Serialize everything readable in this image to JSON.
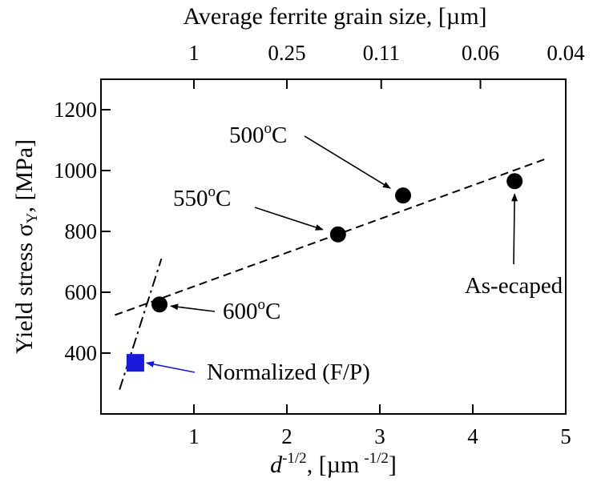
{
  "chart_data": {
    "type": "scatter",
    "xlabel": "d",
    "xlabel_sup": "-1/2",
    "xlabel_units": ", [µm",
    "xlabel_units_sup": "-1/2",
    "xlabel_close": "]",
    "ylabel": "Yield stress σ",
    "ylabel_sub": "Y",
    "ylabel_units": ", [MPa]",
    "top_xlabel": "Average ferrite grain size, [µm]",
    "xlim": [
      0,
      5
    ],
    "ylim": [
      200,
      1300
    ],
    "x_ticks": [
      1,
      2,
      3,
      4,
      5
    ],
    "y_ticks": [
      400,
      600,
      800,
      1000,
      1200
    ],
    "top_x_ticks": [
      {
        "label": "1",
        "x": 1.0
      },
      {
        "label": "0.25",
        "x": 2.0
      },
      {
        "label": "0.11",
        "x": 3.015
      },
      {
        "label": "0.06",
        "x": 4.082
      },
      {
        "label": "0.04",
        "x": 5.0
      }
    ],
    "grid": false,
    "series": [
      {
        "points": [
          {
            "x": 0.63,
            "y": 560,
            "label": "600",
            "label_sup": "o",
            "label_suffix": "C"
          },
          {
            "x": 2.55,
            "y": 790,
            "label": "550",
            "label_sup": "o",
            "label_suffix": "C"
          },
          {
            "x": 3.25,
            "y": 918,
            "label": "500",
            "label_sup": "o",
            "label_suffix": "C"
          },
          {
            "x": 4.45,
            "y": 965,
            "label": "As-ecaped",
            "label_sup": "",
            "label_suffix": ""
          }
        ],
        "marker": "circle",
        "color": "#000000"
      },
      {
        "points": [
          {
            "x": 0.37,
            "y": 368,
            "label": "Normalized (F/P)",
            "label_sup": "",
            "label_suffix": ""
          }
        ],
        "marker": "square",
        "color": "#1a1adc"
      }
    ],
    "fit_lines": [
      {
        "style": "dashed",
        "x": [
          0.15,
          4.8
        ],
        "y": [
          525,
          1040
        ]
      },
      {
        "style": "dash-dot",
        "x": [
          0.2,
          0.65
        ],
        "y": [
          280,
          710
        ]
      }
    ]
  }
}
